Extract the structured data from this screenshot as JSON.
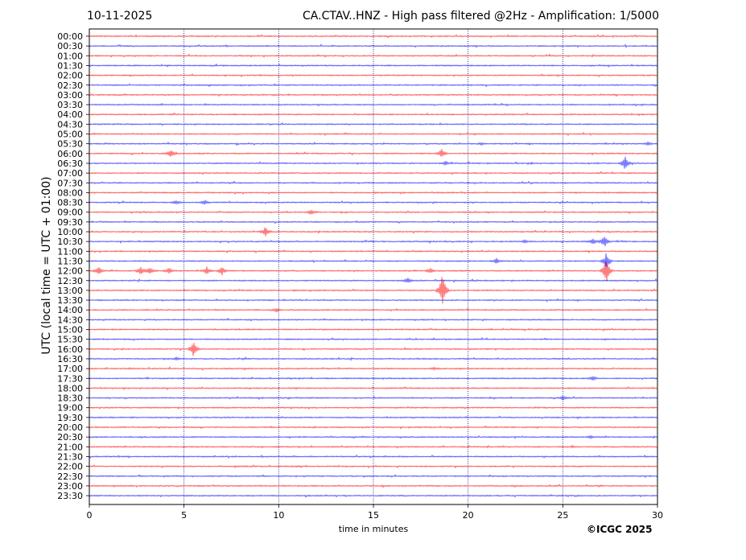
{
  "header": {
    "date": "10-11-2025",
    "title": "CA.CTAV..HNZ - High pass filtered @2Hz - Amplification: 1/5000"
  },
  "footer": {
    "copyright": "©ICGC 2025"
  },
  "colors": {
    "odd_trace": "#ff0000",
    "even_trace": "#0000ff",
    "gridline": "#000080"
  },
  "chart_data": {
    "type": "line",
    "title": "CA.CTAV..HNZ - High pass filtered @2Hz - Amplification: 1/5000",
    "xlabel": "time in minutes",
    "ylabel": "UTC (local time = UTC + 01:00)",
    "xlim": [
      0,
      30
    ],
    "xticks": [
      0,
      5,
      10,
      15,
      20,
      25,
      30
    ],
    "vertical_grid_minutes": [
      5,
      10,
      15,
      20,
      25
    ],
    "grid": true,
    "rows": [
      "00:00",
      "00:30",
      "01:00",
      "01:30",
      "02:00",
      "02:30",
      "03:00",
      "03:30",
      "04:00",
      "04:30",
      "05:00",
      "05:30",
      "06:00",
      "06:30",
      "07:00",
      "07:30",
      "08:00",
      "08:30",
      "09:00",
      "09:30",
      "10:00",
      "10:30",
      "11:00",
      "11:30",
      "12:00",
      "12:30",
      "13:00",
      "13:30",
      "14:00",
      "14:30",
      "15:00",
      "15:30",
      "16:00",
      "16:30",
      "17:00",
      "17:30",
      "18:00",
      "18:30",
      "19:00",
      "19:30",
      "20:00",
      "20:30",
      "21:00",
      "21:30",
      "22:00",
      "22:30",
      "23:00",
      "23:30"
    ],
    "events": [
      {
        "row": "06:00",
        "minute": 4.3,
        "amplitude": 0.5
      },
      {
        "row": "06:00",
        "minute": 18.6,
        "amplitude": 0.55
      },
      {
        "row": "06:30",
        "minute": 18.8,
        "amplitude": 0.2
      },
      {
        "row": "06:30",
        "minute": 28.3,
        "amplitude": 0.8
      },
      {
        "row": "08:30",
        "minute": 6.1,
        "amplitude": 0.25
      },
      {
        "row": "08:30",
        "minute": 4.6,
        "amplitude": 0.2
      },
      {
        "row": "09:00",
        "minute": 11.7,
        "amplitude": 0.25
      },
      {
        "row": "10:00",
        "minute": 9.3,
        "amplitude": 0.55
      },
      {
        "row": "10:30",
        "minute": 27.2,
        "amplitude": 0.7
      },
      {
        "row": "10:30",
        "minute": 26.6,
        "amplitude": 0.35
      },
      {
        "row": "11:30",
        "minute": 27.3,
        "amplitude": 0.9
      },
      {
        "row": "11:30",
        "minute": 21.5,
        "amplitude": 0.3
      },
      {
        "row": "12:00",
        "minute": 0.5,
        "amplitude": 0.5
      },
      {
        "row": "12:00",
        "minute": 2.7,
        "amplitude": 0.45
      },
      {
        "row": "12:00",
        "minute": 3.2,
        "amplitude": 0.4
      },
      {
        "row": "12:00",
        "minute": 4.2,
        "amplitude": 0.35
      },
      {
        "row": "12:00",
        "minute": 6.2,
        "amplitude": 0.4
      },
      {
        "row": "12:00",
        "minute": 7.0,
        "amplitude": 0.5
      },
      {
        "row": "12:00",
        "minute": 18.0,
        "amplitude": 0.3
      },
      {
        "row": "12:00",
        "minute": 27.3,
        "amplitude": 1.5
      },
      {
        "row": "12:30",
        "minute": 16.8,
        "amplitude": 0.3
      },
      {
        "row": "13:00",
        "minute": 18.65,
        "amplitude": 2.2
      },
      {
        "row": "14:00",
        "minute": 9.9,
        "amplitude": 0.2
      },
      {
        "row": "16:00",
        "minute": 5.5,
        "amplitude": 0.9
      },
      {
        "row": "16:30",
        "minute": 4.6,
        "amplitude": 0.15
      },
      {
        "row": "17:00",
        "minute": 18.2,
        "amplitude": 0.15
      },
      {
        "row": "17:30",
        "minute": 26.6,
        "amplitude": 0.25
      },
      {
        "row": "18:30",
        "minute": 25.0,
        "amplitude": 0.2
      },
      {
        "row": "20:30",
        "minute": 26.5,
        "amplitude": 0.15
      },
      {
        "row": "21:00",
        "minute": 25.5,
        "amplitude": 0.1
      },
      {
        "row": "10:30",
        "minute": 23.0,
        "amplitude": 0.15
      },
      {
        "row": "05:30",
        "minute": 29.5,
        "amplitude": 0.15
      },
      {
        "row": "05:30",
        "minute": 20.7,
        "amplitude": 0.12
      }
    ]
  }
}
